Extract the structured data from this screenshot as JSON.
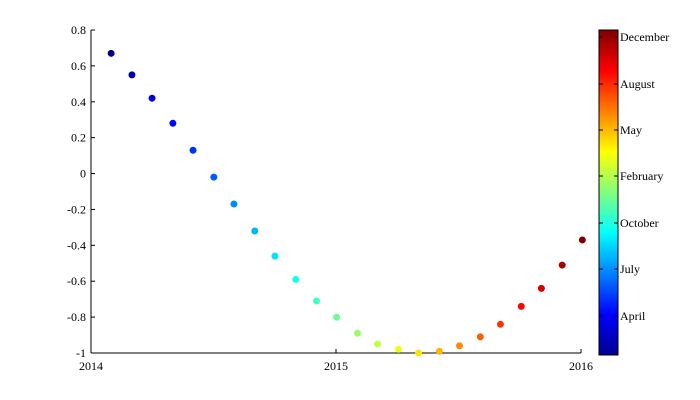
{
  "chart_data": {
    "type": "scatter",
    "title": "",
    "xlabel": "",
    "ylabel": "",
    "x_axis": {
      "ticks": [
        "2014",
        "2015",
        "2016"
      ],
      "range": [
        "2014-01-01",
        "2016-01-01"
      ]
    },
    "y_axis": {
      "ticks": [
        "0.8",
        "0.6",
        "0.4",
        "0.2",
        "0",
        "-0.2",
        "-0.4",
        "-0.6",
        "-0.8",
        "-1"
      ],
      "range": [
        -1,
        0.8
      ]
    },
    "grid": false,
    "colormap": "jet",
    "colorbar": {
      "position": "right",
      "labels": [
        "December",
        "August",
        "May",
        "February",
        "October",
        "July",
        "April"
      ]
    },
    "points": [
      {
        "date": "2014-01-31",
        "y": 0.67
      },
      {
        "date": "2014-03-03",
        "y": 0.55
      },
      {
        "date": "2014-04-02",
        "y": 0.42
      },
      {
        "date": "2014-05-03",
        "y": 0.28
      },
      {
        "date": "2014-06-02",
        "y": 0.13
      },
      {
        "date": "2014-07-03",
        "y": -0.02
      },
      {
        "date": "2014-08-02",
        "y": -0.17
      },
      {
        "date": "2014-09-02",
        "y": -0.32
      },
      {
        "date": "2014-10-02",
        "y": -0.46
      },
      {
        "date": "2014-11-02",
        "y": -0.59
      },
      {
        "date": "2014-12-03",
        "y": -0.71
      },
      {
        "date": "2015-01-02",
        "y": -0.8
      },
      {
        "date": "2015-02-02",
        "y": -0.89
      },
      {
        "date": "2015-03-04",
        "y": -0.95
      },
      {
        "date": "2015-04-04",
        "y": -0.98
      },
      {
        "date": "2015-05-04",
        "y": -1.0
      },
      {
        "date": "2015-06-04",
        "y": -0.99
      },
      {
        "date": "2015-07-04",
        "y": -0.96
      },
      {
        "date": "2015-08-04",
        "y": -0.91
      },
      {
        "date": "2015-09-03",
        "y": -0.84
      },
      {
        "date": "2015-10-04",
        "y": -0.74
      },
      {
        "date": "2015-11-03",
        "y": -0.64
      },
      {
        "date": "2015-12-04",
        "y": -0.51
      },
      {
        "date": "2016-01-03",
        "y": -0.37
      }
    ]
  }
}
